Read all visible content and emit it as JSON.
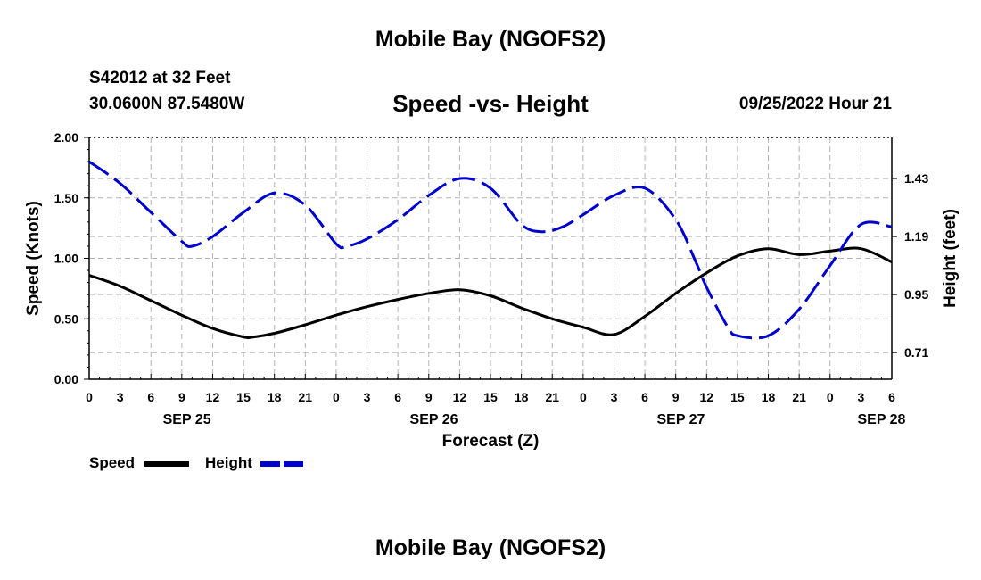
{
  "header": {
    "title": "Mobile Bay (NGOFS2)",
    "station": "S42012 at 32 Feet",
    "coordinates": "30.0600N  87.5480W",
    "subtitle": "Speed -vs- Height",
    "forecast_time": "09/25/2022 Hour 21"
  },
  "footer": {
    "title": "Mobile Bay (NGOFS2)"
  },
  "colors": {
    "speed": "#000000",
    "height": "#0000cc",
    "grid": "#b4b4b4"
  },
  "chart_data": {
    "type": "line",
    "xlabel": "Forecast (Z)",
    "ylabel_left": "Speed (Knots)",
    "ylabel_right": "Height (feet)",
    "x_ticks": [
      "0",
      "3",
      "6",
      "9",
      "12",
      "15",
      "18",
      "21",
      "0",
      "3",
      "6",
      "9",
      "12",
      "15",
      "18",
      "21",
      "0",
      "3",
      "6",
      "9",
      "12",
      "15",
      "18",
      "21",
      "0",
      "3",
      "6"
    ],
    "x_date_labels": [
      {
        "label": "SEP 25",
        "hour": 9.5
      },
      {
        "label": "SEP 26",
        "hour": 33.5
      },
      {
        "label": "SEP 27",
        "hour": 57.5
      },
      {
        "label": "SEP 28",
        "hour": 77
      }
    ],
    "xlim_hours": [
      0,
      78
    ],
    "ylim_left": [
      0,
      2
    ],
    "yticks_left": [
      "0.00",
      "0.50",
      "1.00",
      "1.50",
      "2.00"
    ],
    "ylim_right": [
      0.6,
      1.6
    ],
    "yticks_right": [
      {
        "label": "0.71",
        "value": 0.71
      },
      {
        "label": "0.95",
        "value": 0.95
      },
      {
        "label": "1.19",
        "value": 1.19
      },
      {
        "label": "1.43",
        "value": 1.43
      }
    ],
    "grid": true,
    "series": [
      {
        "name": "Speed",
        "axis": "left",
        "style": "solid",
        "x_hours": [
          0,
          3,
          6,
          9,
          12,
          15,
          16,
          18,
          21,
          24,
          27,
          30,
          33,
          36,
          39,
          42,
          45,
          48,
          51,
          54,
          57,
          60,
          63,
          66,
          69,
          72,
          75,
          78
        ],
        "values": [
          0.86,
          0.77,
          0.65,
          0.53,
          0.42,
          0.35,
          0.35,
          0.38,
          0.45,
          0.53,
          0.6,
          0.66,
          0.71,
          0.74,
          0.69,
          0.59,
          0.5,
          0.43,
          0.37,
          0.52,
          0.71,
          0.88,
          1.02,
          1.08,
          1.03,
          1.06,
          1.08,
          0.97
        ]
      },
      {
        "name": "Height",
        "axis": "right",
        "style": "dashed",
        "x_hours": [
          0,
          3,
          6,
          9,
          10,
          12,
          15,
          18,
          21,
          24,
          25,
          27,
          30,
          33,
          36,
          39,
          42,
          44,
          46,
          48,
          51,
          54,
          57,
          59,
          60,
          62,
          63,
          66,
          69,
          72,
          75,
          78
        ],
        "values": [
          1.5,
          1.41,
          1.29,
          1.17,
          1.15,
          1.19,
          1.29,
          1.37,
          1.32,
          1.16,
          1.15,
          1.18,
          1.26,
          1.36,
          1.43,
          1.39,
          1.24,
          1.21,
          1.23,
          1.28,
          1.36,
          1.39,
          1.26,
          1.08,
          0.98,
          0.82,
          0.78,
          0.78,
          0.89,
          1.07,
          1.24,
          1.23
        ]
      }
    ]
  }
}
